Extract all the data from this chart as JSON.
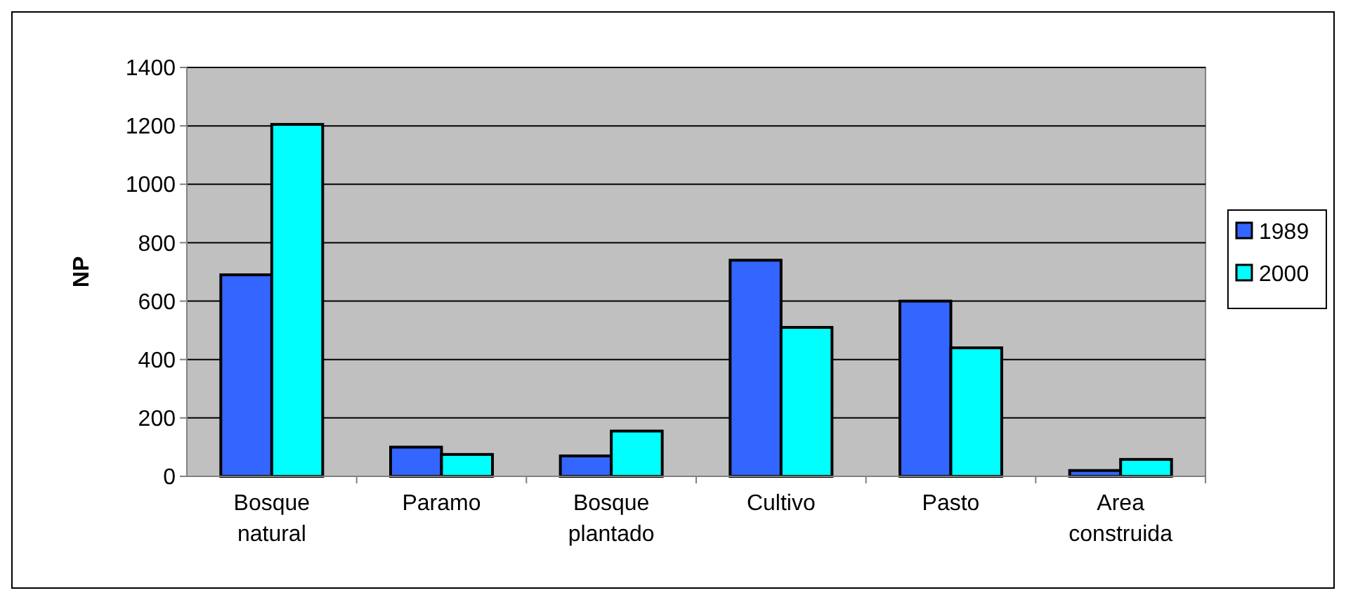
{
  "chart_data": {
    "type": "bar",
    "ylabel": "NP",
    "categories": [
      "Bosque natural",
      "Paramo",
      "Bosque plantado",
      "Cultivo",
      "Pasto",
      "Area construida"
    ],
    "series": [
      {
        "name": "1989",
        "color": "#3366ff",
        "values": [
          690,
          100,
          70,
          740,
          600,
          20
        ]
      },
      {
        "name": "2000",
        "color": "#00ffff",
        "values": [
          1205,
          75,
          155,
          510,
          440,
          58
        ]
      }
    ],
    "ylim": [
      0,
      1400
    ],
    "yticks": [
      0,
      200,
      400,
      600,
      800,
      1000,
      1200,
      1400
    ],
    "grid": "y",
    "legend": "right"
  }
}
